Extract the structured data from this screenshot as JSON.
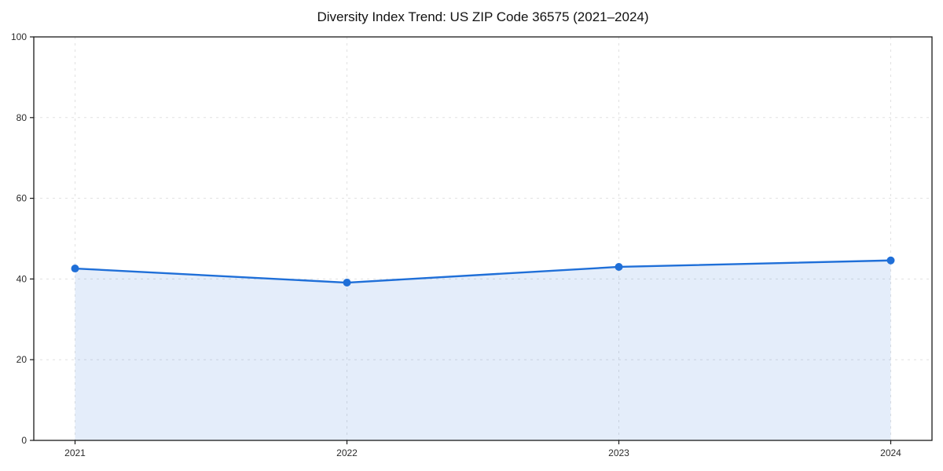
{
  "page": {
    "background": "#ffffff"
  },
  "chart_data": {
    "type": "area",
    "title": "Diversity Index Trend: US ZIP Code 36575 (2021–2024)",
    "categories": [
      "2021",
      "2022",
      "2023",
      "2024"
    ],
    "series": [
      {
        "name": "Diversity Index",
        "values": [
          42.6,
          39.1,
          43.0,
          44.6
        ]
      }
    ],
    "xlabel": "",
    "ylabel": "",
    "ylim": [
      0,
      100
    ],
    "yticks": [
      0,
      20,
      40,
      60,
      80,
      100
    ],
    "grid": true,
    "grid_style": "dashed",
    "legend_position": "none",
    "colors": {
      "line": "#1f6fd8",
      "marker": "#1f6fd8",
      "fill": "#1f6fd8",
      "fill_opacity": 0.12,
      "grid": "#e1e1e1",
      "spine": "#1a1a1a",
      "tick_label": "#2b2b2b",
      "title": "#111111"
    }
  }
}
